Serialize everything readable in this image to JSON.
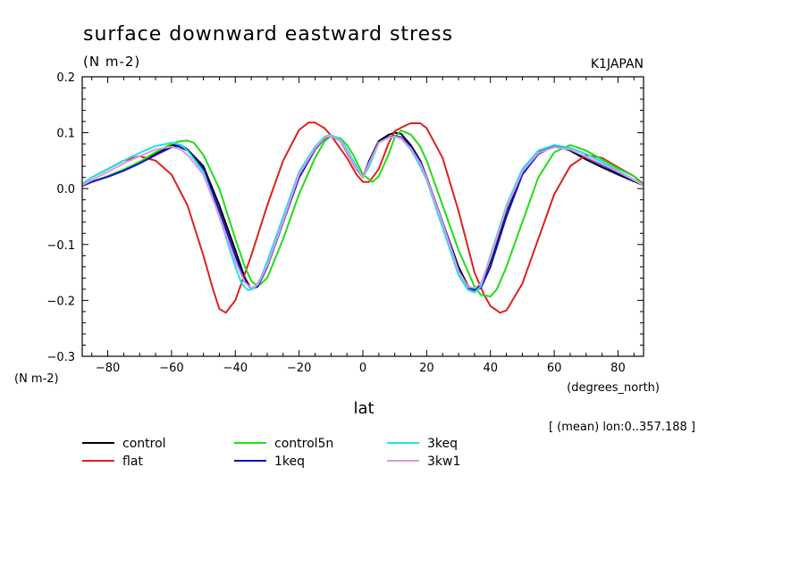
{
  "chart_data": {
    "type": "line",
    "title": "surface downward eastward stress",
    "subtitle": "(N m-2)",
    "model_label": "K1JAPAN",
    "xlabel": "lat",
    "xunit": "(degrees_north)",
    "yunit": "(N m-2)",
    "note": "[ (mean) lon:0..357.188 ]",
    "xlim": [
      -88,
      88
    ],
    "ylim": [
      -0.3,
      0.2
    ],
    "xticks": [
      -80,
      -60,
      -40,
      -20,
      0,
      20,
      40,
      60,
      80
    ],
    "xtick_labels": [
      "−80",
      "−60",
      "−40",
      "−20",
      "0",
      "20",
      "40",
      "60",
      "80"
    ],
    "yticks": [
      -0.3,
      -0.2,
      -0.1,
      0.0,
      0.1,
      0.2
    ],
    "ytick_labels": [
      "−0.3",
      "−0.2",
      "−0.1",
      "0.0",
      "0.1",
      "0.2"
    ],
    "grid": false,
    "legend_position": "bottom",
    "series": [
      {
        "name": "control",
        "color": "#000000",
        "x": [
          -88,
          -85,
          -80,
          -75,
          -70,
          -65,
          -60,
          -57,
          -55,
          -50,
          -45,
          -40,
          -37,
          -35,
          -33,
          -30,
          -25,
          -20,
          -15,
          -12,
          -10,
          -7,
          -5,
          -2,
          0,
          2,
          5,
          8,
          10,
          12,
          15,
          18,
          20,
          25,
          30,
          33,
          35,
          37,
          40,
          45,
          50,
          55,
          60,
          65,
          70,
          75,
          80,
          85,
          88
        ],
        "y": [
          0.005,
          0.012,
          0.022,
          0.034,
          0.047,
          0.062,
          0.078,
          0.078,
          0.07,
          0.04,
          -0.03,
          -0.11,
          -0.16,
          -0.18,
          -0.175,
          -0.14,
          -0.06,
          0.02,
          0.07,
          0.09,
          0.094,
          0.085,
          0.065,
          0.035,
          0.02,
          0.05,
          0.085,
          0.096,
          0.1,
          0.098,
          0.078,
          0.05,
          0.02,
          -0.06,
          -0.14,
          -0.175,
          -0.18,
          -0.172,
          -0.13,
          -0.04,
          0.03,
          0.065,
          0.078,
          0.068,
          0.052,
          0.038,
          0.025,
          0.013,
          0.006
        ]
      },
      {
        "name": "flat",
        "color": "#e02020",
        "x": [
          -88,
          -85,
          -80,
          -75,
          -70,
          -65,
          -60,
          -55,
          -50,
          -47,
          -45,
          -43,
          -40,
          -35,
          -30,
          -25,
          -20,
          -17,
          -15,
          -12,
          -10,
          -5,
          -2,
          0,
          2,
          5,
          8,
          10,
          13,
          15,
          18,
          20,
          25,
          30,
          35,
          38,
          40,
          43,
          45,
          50,
          55,
          60,
          65,
          70,
          75,
          80,
          85,
          88
        ],
        "y": [
          0.008,
          0.02,
          0.035,
          0.05,
          0.058,
          0.05,
          0.025,
          -0.03,
          -0.12,
          -0.18,
          -0.215,
          -0.222,
          -0.2,
          -0.12,
          -0.03,
          0.05,
          0.105,
          0.118,
          0.118,
          0.108,
          0.095,
          0.055,
          0.025,
          0.012,
          0.012,
          0.035,
          0.08,
          0.103,
          0.112,
          0.117,
          0.117,
          0.108,
          0.055,
          -0.04,
          -0.15,
          -0.19,
          -0.21,
          -0.222,
          -0.218,
          -0.17,
          -0.09,
          -0.01,
          0.04,
          0.06,
          0.055,
          0.038,
          0.022,
          0.008
        ]
      },
      {
        "name": "control5n",
        "color": "#22dd11",
        "x": [
          -88,
          -85,
          -80,
          -75,
          -70,
          -65,
          -60,
          -57,
          -55,
          -53,
          -50,
          -45,
          -40,
          -37,
          -35,
          -33,
          -30,
          -25,
          -20,
          -15,
          -12,
          -10,
          -7,
          -5,
          -3,
          0,
          3,
          5,
          8,
          10,
          12,
          15,
          18,
          20,
          25,
          30,
          35,
          37,
          40,
          42,
          45,
          50,
          55,
          60,
          65,
          70,
          75,
          80,
          85,
          88
        ],
        "y": [
          0.005,
          0.012,
          0.022,
          0.034,
          0.048,
          0.065,
          0.08,
          0.085,
          0.086,
          0.082,
          0.06,
          0.0,
          -0.09,
          -0.14,
          -0.165,
          -0.175,
          -0.16,
          -0.09,
          -0.01,
          0.055,
          0.085,
          0.094,
          0.09,
          0.078,
          0.06,
          0.025,
          0.012,
          0.022,
          0.06,
          0.092,
          0.104,
          0.097,
          0.075,
          0.05,
          -0.03,
          -0.11,
          -0.175,
          -0.19,
          -0.193,
          -0.18,
          -0.14,
          -0.06,
          0.02,
          0.065,
          0.078,
          0.068,
          0.052,
          0.036,
          0.022,
          0.006
        ]
      },
      {
        "name": "1keq",
        "color": "#1010cc",
        "x": [
          -88,
          -85,
          -80,
          -75,
          -70,
          -65,
          -60,
          -58,
          -55,
          -50,
          -45,
          -40,
          -37,
          -35,
          -33,
          -30,
          -25,
          -20,
          -15,
          -12,
          -10,
          -7,
          -5,
          -2,
          0,
          2,
          5,
          8,
          10,
          12,
          15,
          18,
          20,
          25,
          30,
          33,
          35,
          37,
          40,
          45,
          50,
          55,
          60,
          65,
          70,
          75,
          80,
          85,
          88
        ],
        "y": [
          0.005,
          0.012,
          0.021,
          0.032,
          0.045,
          0.06,
          0.074,
          0.076,
          0.068,
          0.035,
          -0.04,
          -0.12,
          -0.165,
          -0.18,
          -0.175,
          -0.14,
          -0.06,
          0.02,
          0.07,
          0.09,
          0.094,
          0.085,
          0.065,
          0.035,
          0.02,
          0.048,
          0.083,
          0.092,
          0.094,
          0.092,
          0.075,
          0.048,
          0.02,
          -0.06,
          -0.145,
          -0.178,
          -0.182,
          -0.178,
          -0.14,
          -0.05,
          0.025,
          0.062,
          0.076,
          0.07,
          0.056,
          0.042,
          0.028,
          0.014,
          0.006
        ]
      },
      {
        "name": "3keq",
        "color": "#22e0e8",
        "x": [
          -88,
          -85,
          -80,
          -75,
          -70,
          -65,
          -60,
          -57,
          -55,
          -50,
          -45,
          -40,
          -38,
          -36,
          -34,
          -32,
          -30,
          -25,
          -20,
          -15,
          -12,
          -10,
          -7,
          -5,
          -2,
          0,
          2,
          5,
          8,
          10,
          12,
          15,
          18,
          20,
          25,
          30,
          33,
          35,
          37,
          40,
          45,
          50,
          55,
          60,
          65,
          70,
          75,
          80,
          85,
          88
        ],
        "y": [
          0.008,
          0.02,
          0.035,
          0.05,
          0.064,
          0.076,
          0.082,
          0.078,
          0.068,
          0.03,
          -0.05,
          -0.14,
          -0.17,
          -0.182,
          -0.178,
          -0.16,
          -0.13,
          -0.05,
          0.03,
          0.075,
          0.093,
          0.096,
          0.088,
          0.07,
          0.04,
          0.02,
          0.04,
          0.082,
          0.091,
          0.093,
          0.09,
          0.07,
          0.04,
          0.015,
          -0.07,
          -0.155,
          -0.182,
          -0.186,
          -0.175,
          -0.12,
          -0.03,
          0.035,
          0.068,
          0.078,
          0.073,
          0.062,
          0.048,
          0.032,
          0.016,
          0.006
        ]
      },
      {
        "name": "3kw1",
        "color": "#dd99dd",
        "x": [
          -88,
          -85,
          -80,
          -75,
          -70,
          -65,
          -60,
          -57,
          -55,
          -50,
          -45,
          -40,
          -37,
          -35,
          -33,
          -30,
          -25,
          -20,
          -15,
          -12,
          -10,
          -7,
          -5,
          -2,
          0,
          2,
          5,
          8,
          10,
          12,
          15,
          18,
          20,
          25,
          30,
          33,
          35,
          37,
          40,
          45,
          50,
          55,
          60,
          65,
          70,
          75,
          80,
          85,
          88
        ],
        "y": [
          0.006,
          0.015,
          0.03,
          0.045,
          0.058,
          0.07,
          0.075,
          0.07,
          0.06,
          0.025,
          -0.05,
          -0.13,
          -0.168,
          -0.178,
          -0.172,
          -0.138,
          -0.058,
          0.025,
          0.072,
          0.091,
          0.094,
          0.085,
          0.066,
          0.036,
          0.02,
          0.046,
          0.082,
          0.091,
          0.093,
          0.09,
          0.072,
          0.045,
          0.018,
          -0.062,
          -0.148,
          -0.176,
          -0.178,
          -0.17,
          -0.125,
          -0.035,
          0.03,
          0.064,
          0.074,
          0.07,
          0.057,
          0.044,
          0.03,
          0.015,
          0.006
        ]
      }
    ]
  }
}
